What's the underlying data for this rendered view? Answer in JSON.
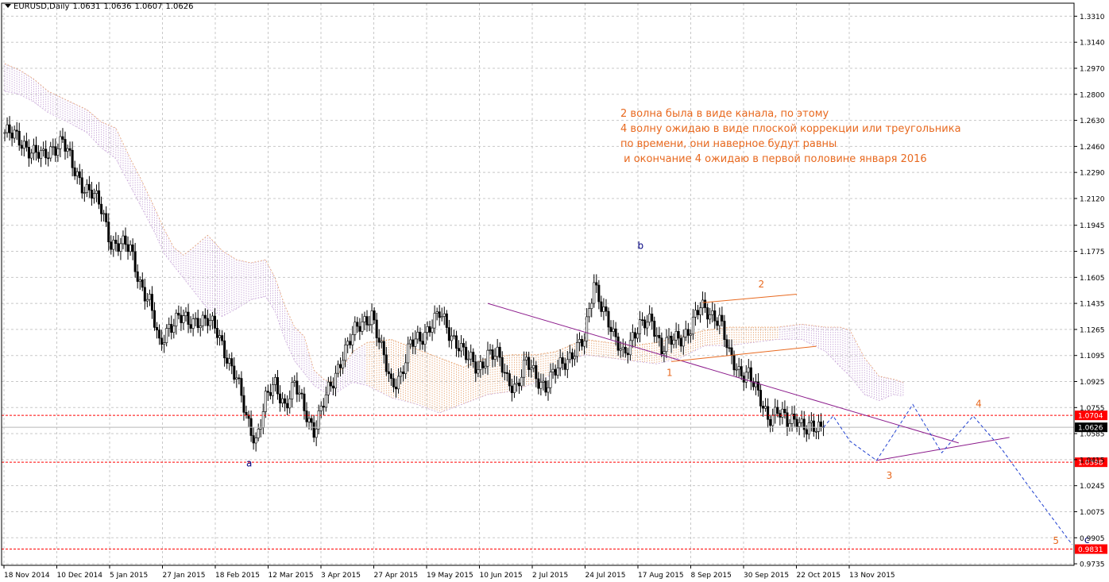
{
  "header": {
    "symbol": "EURUSD,Daily",
    "open": "1.0631",
    "high": "1.0636",
    "low": "1.0607",
    "close": "1.0626"
  },
  "note_lines": [
    "2 волна была в виде канала, по этому",
    "4 волну ожидаю в виде плоской коррекции или треугольника",
    "по времени, они наверное будут равны",
    " и окончание 4 ожидаю в первой половине января 2016"
  ],
  "chart_data": {
    "type": "candlestick",
    "ylim": [
      0.9725,
      1.3395
    ],
    "y_ticks": [
      "1.3310",
      "1.3140",
      "1.2970",
      "1.2800",
      "1.2630",
      "1.2460",
      "1.2290",
      "1.2120",
      "1.1945",
      "1.1775",
      "1.1605",
      "1.1435",
      "1.1265",
      "1.1095",
      "1.0925",
      "1.0755",
      "1.0585",
      "1.0415",
      "1.0245",
      "1.0075",
      "0.9905",
      "0.9735"
    ],
    "x_ticks": [
      "18 Nov 2014",
      "10 Dec 2014",
      "5 Jan 2015",
      "27 Jan 2015",
      "18 Feb 2015",
      "12 Mar 2015",
      "3 Apr 2015",
      "27 Apr 2015",
      "19 May 2015",
      "10 Jun 2015",
      "2 Jul 2015",
      "24 Jul 2015",
      "17 Aug 2015",
      "8 Sep 2015",
      "30 Sep 2015",
      "22 Oct 2015",
      "13 Nov 2015"
    ],
    "price_path": [
      [
        0,
        1.255
      ],
      [
        4,
        1.252
      ],
      [
        8,
        1.248
      ],
      [
        12,
        1.242
      ],
      [
        16,
        1.238
      ],
      [
        20,
        1.246
      ],
      [
        24,
        1.25
      ],
      [
        28,
        1.232
      ],
      [
        32,
        1.222
      ],
      [
        36,
        1.216
      ],
      [
        40,
        1.204
      ],
      [
        44,
        1.184
      ],
      [
        48,
        1.182
      ],
      [
        52,
        1.178
      ],
      [
        56,
        1.158
      ],
      [
        60,
        1.144
      ],
      [
        64,
        1.115
      ],
      [
        68,
        1.13
      ],
      [
        72,
        1.134
      ],
      [
        76,
        1.13
      ],
      [
        80,
        1.134
      ],
      [
        84,
        1.132
      ],
      [
        88,
        1.124
      ],
      [
        92,
        1.11
      ],
      [
        96,
        1.094
      ],
      [
        100,
        1.068
      ],
      [
        104,
        1.055
      ],
      [
        108,
        1.08
      ],
      [
        112,
        1.09
      ],
      [
        116,
        1.078
      ],
      [
        120,
        1.09
      ],
      [
        124,
        1.074
      ],
      [
        128,
        1.062
      ],
      [
        132,
        1.078
      ],
      [
        136,
        1.092
      ],
      [
        140,
        1.112
      ],
      [
        144,
        1.122
      ],
      [
        148,
        1.13
      ],
      [
        152,
        1.138
      ],
      [
        156,
        1.112
      ],
      [
        160,
        1.09
      ],
      [
        164,
        1.098
      ],
      [
        168,
        1.116
      ],
      [
        172,
        1.12
      ],
      [
        176,
        1.13
      ],
      [
        180,
        1.136
      ],
      [
        184,
        1.124
      ],
      [
        188,
        1.118
      ],
      [
        192,
        1.106
      ],
      [
        196,
        1.1
      ],
      [
        200,
        1.112
      ],
      [
        204,
        1.108
      ],
      [
        208,
        1.094
      ],
      [
        212,
        1.09
      ],
      [
        216,
        1.104
      ],
      [
        220,
        1.096
      ],
      [
        224,
        1.09
      ],
      [
        228,
        1.098
      ],
      [
        232,
        1.106
      ],
      [
        236,
        1.114
      ],
      [
        240,
        1.118
      ],
      [
        244,
        1.158
      ],
      [
        248,
        1.14
      ],
      [
        252,
        1.12
      ],
      [
        256,
        1.112
      ],
      [
        260,
        1.122
      ],
      [
        264,
        1.128
      ],
      [
        268,
        1.134
      ],
      [
        272,
        1.114
      ],
      [
        276,
        1.118
      ],
      [
        280,
        1.122
      ],
      [
        284,
        1.128
      ],
      [
        288,
        1.14
      ],
      [
        292,
        1.138
      ],
      [
        296,
        1.134
      ],
      [
        300,
        1.108
      ],
      [
        304,
        1.1
      ],
      [
        308,
        1.098
      ],
      [
        312,
        1.082
      ],
      [
        316,
        1.07
      ],
      [
        320,
        1.074
      ],
      [
        324,
        1.064
      ],
      [
        328,
        1.07
      ],
      [
        332,
        1.062
      ],
      [
        336,
        1.06
      ],
      [
        339,
        1.0626
      ]
    ],
    "cloud_upper": [
      [
        0,
        1.3
      ],
      [
        6,
        1.296
      ],
      [
        12,
        1.29
      ],
      [
        18,
        1.282
      ],
      [
        26,
        1.276
      ],
      [
        34,
        1.27
      ],
      [
        40,
        1.262
      ],
      [
        46,
        1.258
      ],
      [
        52,
        1.238
      ],
      [
        56,
        1.226
      ],
      [
        62,
        1.206
      ],
      [
        66,
        1.192
      ],
      [
        70,
        1.18
      ],
      [
        74,
        1.175
      ],
      [
        78,
        1.18
      ],
      [
        84,
        1.188
      ],
      [
        90,
        1.178
      ],
      [
        96,
        1.172
      ],
      [
        102,
        1.17
      ],
      [
        108,
        1.172
      ],
      [
        112,
        1.16
      ],
      [
        116,
        1.142
      ],
      [
        120,
        1.128
      ],
      [
        124,
        1.122
      ],
      [
        128,
        1.1
      ],
      [
        132,
        1.094
      ],
      [
        136,
        1.092
      ],
      [
        140,
        1.102
      ],
      [
        144,
        1.112
      ],
      [
        150,
        1.118
      ],
      [
        160,
        1.12
      ],
      [
        170,
        1.114
      ],
      [
        180,
        1.108
      ],
      [
        190,
        1.102
      ],
      [
        200,
        1.108
      ],
      [
        210,
        1.11
      ],
      [
        220,
        1.11
      ],
      [
        228,
        1.112
      ],
      [
        234,
        1.116
      ],
      [
        240,
        1.12
      ],
      [
        250,
        1.118
      ],
      [
        260,
        1.116
      ],
      [
        270,
        1.118
      ],
      [
        280,
        1.122
      ],
      [
        290,
        1.126
      ],
      [
        300,
        1.128
      ],
      [
        310,
        1.128
      ],
      [
        320,
        1.128
      ],
      [
        330,
        1.13
      ],
      [
        340,
        1.128
      ],
      [
        346,
        1.128
      ],
      [
        350,
        1.126
      ],
      [
        356,
        1.108
      ],
      [
        362,
        1.096
      ],
      [
        368,
        1.094
      ],
      [
        372,
        1.092
      ]
    ],
    "cloud_lower": [
      [
        0,
        1.282
      ],
      [
        6,
        1.28
      ],
      [
        12,
        1.275
      ],
      [
        18,
        1.268
      ],
      [
        26,
        1.262
      ],
      [
        34,
        1.255
      ],
      [
        40,
        1.245
      ],
      [
        46,
        1.238
      ],
      [
        52,
        1.22
      ],
      [
        56,
        1.208
      ],
      [
        62,
        1.19
      ],
      [
        66,
        1.176
      ],
      [
        70,
        1.168
      ],
      [
        74,
        1.16
      ],
      [
        78,
        1.152
      ],
      [
        84,
        1.14
      ],
      [
        90,
        1.135
      ],
      [
        96,
        1.14
      ],
      [
        102,
        1.146
      ],
      [
        108,
        1.148
      ],
      [
        112,
        1.138
      ],
      [
        116,
        1.12
      ],
      [
        120,
        1.106
      ],
      [
        124,
        1.098
      ],
      [
        128,
        1.09
      ],
      [
        132,
        1.086
      ],
      [
        136,
        1.084
      ],
      [
        140,
        1.088
      ],
      [
        144,
        1.092
      ],
      [
        150,
        1.09
      ],
      [
        160,
        1.082
      ],
      [
        170,
        1.078
      ],
      [
        180,
        1.072
      ],
      [
        190,
        1.078
      ],
      [
        200,
        1.084
      ],
      [
        210,
        1.086
      ],
      [
        220,
        1.092
      ],
      [
        228,
        1.098
      ],
      [
        234,
        1.106
      ],
      [
        240,
        1.11
      ],
      [
        250,
        1.108
      ],
      [
        260,
        1.106
      ],
      [
        270,
        1.104
      ],
      [
        280,
        1.108
      ],
      [
        290,
        1.116
      ],
      [
        300,
        1.116
      ],
      [
        310,
        1.118
      ],
      [
        320,
        1.12
      ],
      [
        330,
        1.12
      ],
      [
        340,
        1.112
      ],
      [
        346,
        1.102
      ],
      [
        350,
        1.096
      ],
      [
        356,
        1.084
      ],
      [
        362,
        1.08
      ],
      [
        368,
        1.084
      ],
      [
        372,
        1.083
      ]
    ],
    "h_levels": [
      {
        "value": 1.0704,
        "label": "1.0704",
        "color": "#ff0000"
      },
      {
        "value": 1.0398,
        "label": "1.0398",
        "color": "#ff0000"
      },
      {
        "value": 0.9831,
        "label": "0.9831",
        "color": "#ff0000"
      }
    ],
    "current_price": {
      "value": 1.0626,
      "label": "1.0626"
    },
    "trendlines": [
      {
        "color": "#8b1a8b",
        "points": [
          [
            200,
            1.1435
          ],
          [
            395,
            1.0524
          ]
        ]
      },
      {
        "color": "#8b1a8b",
        "points": [
          [
            361,
            1.041
          ],
          [
            416,
            1.056
          ]
        ]
      },
      {
        "color": "#e8691f",
        "points": [
          [
            289,
            1.144
          ],
          [
            328,
            1.1495
          ]
        ]
      },
      {
        "color": "#e8691f",
        "points": [
          [
            276,
            1.1055
          ],
          [
            336,
            1.1155
          ]
        ]
      }
    ],
    "forecast_path": [
      [
        339,
        1.0626
      ],
      [
        343,
        1.07
      ],
      [
        350,
        1.0535
      ],
      [
        361,
        1.041
      ],
      [
        376,
        1.0775
      ],
      [
        388,
        1.046
      ],
      [
        401,
        1.07
      ],
      [
        413,
        1.048
      ],
      [
        424,
        1.024
      ],
      [
        442,
        0.986
      ]
    ],
    "wave_labels": [
      {
        "text": "a",
        "x": 100,
        "y": 1.037,
        "color": "#00007f"
      },
      {
        "text": "b",
        "x": 262,
        "y": 1.179,
        "color": "#00007f"
      },
      {
        "text": "c",
        "x": 447,
        "y": 0.987,
        "color": "#00007f"
      },
      {
        "text": "1",
        "x": 274,
        "y": 1.096,
        "color": "#e8691f"
      },
      {
        "text": "2",
        "x": 312,
        "y": 1.154,
        "color": "#e8691f"
      },
      {
        "text": "3",
        "x": 365,
        "y": 1.029,
        "color": "#e8691f"
      },
      {
        "text": "4",
        "x": 402,
        "y": 1.076,
        "color": "#e8691f"
      },
      {
        "text": "5",
        "x": 434,
        "y": 0.9865,
        "color": "#e8691f"
      }
    ]
  }
}
